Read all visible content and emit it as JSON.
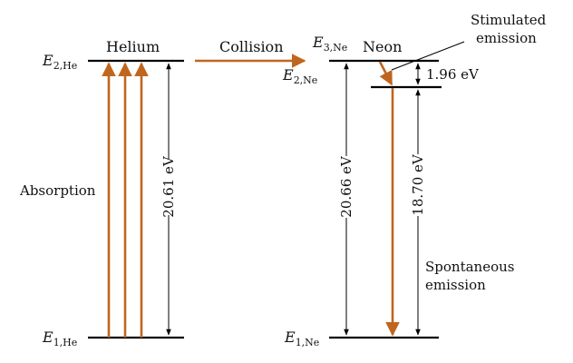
{
  "colors": {
    "transition": "#c0651e",
    "level": "#000000",
    "text": "#111111"
  },
  "helium": {
    "name": "Helium",
    "level_upper": {
      "symbol": "E",
      "subscript": "2,He"
    },
    "level_lower": {
      "symbol": "E",
      "subscript": "1,He"
    },
    "gap_energy": "20.61 eV",
    "absorption_label": "Absorption"
  },
  "collision_label": "Collision",
  "neon": {
    "name": "Neon",
    "level_top": {
      "symbol": "E",
      "subscript": "3,Ne"
    },
    "level_middle": {
      "symbol": "E",
      "subscript": "2,Ne"
    },
    "level_lower": {
      "symbol": "E",
      "subscript": "1,Ne"
    },
    "gap_top_to_ground": "20.66 eV",
    "gap_top_to_middle": "1.96 eV",
    "gap_middle_to_ground": "18.70 eV",
    "stimulated_line1": "Stimulated",
    "stimulated_line2": "emission",
    "spontaneous_line1": "Spontaneous",
    "spontaneous_line2": "emission"
  }
}
